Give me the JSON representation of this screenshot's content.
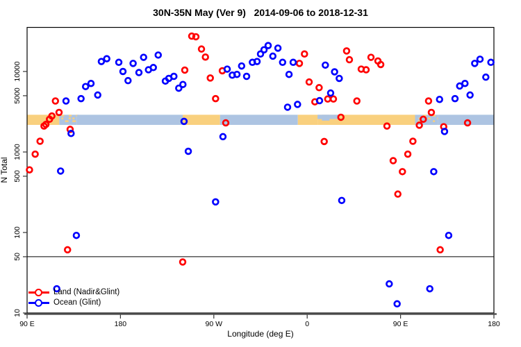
{
  "title": "30N-35N May (Ver 9)   2014-09-06 to 2018-12-31",
  "chart_data": {
    "type": "scatter",
    "title": "30N-35N May (Ver 9)   2014-09-06 to 2018-12-31",
    "xlabel": "Longitude (deg E)",
    "ylabel": "N Total",
    "y_scale": "log",
    "ylim": [
      10,
      40000
    ],
    "x_span_deg": [
      90,
      540
    ],
    "grid": false,
    "legend_position": "bottom-left",
    "reference_line_n": 50,
    "x_ticks": [
      {
        "lon": 90,
        "label": "90 E"
      },
      {
        "lon": 180,
        "label": "180"
      },
      {
        "lon": 270,
        "label": "90 W"
      },
      {
        "lon": 360,
        "label": "0"
      },
      {
        "lon": 450,
        "label": "90 E"
      },
      {
        "lon": 540,
        "label": "180"
      }
    ],
    "y_ticks": [
      {
        "n": 10,
        "label": "10"
      },
      {
        "n": 50,
        "label": "50"
      },
      {
        "n": 100,
        "label": "100"
      },
      {
        "n": 500,
        "label": "500"
      },
      {
        "n": 1000,
        "label": "1000"
      },
      {
        "n": 5000,
        "label": "5000"
      },
      {
        "n": 10000,
        "label": "10000"
      }
    ],
    "map_band": {
      "n_top": 2900,
      "n_bottom": 2170,
      "land_color": "#f9d07e",
      "ocean_color": "#adc4e2",
      "segments": [
        {
          "type": "land",
          "from": 90,
          "to": 121
        },
        {
          "type": "mixed",
          "from": 121,
          "to": 138
        },
        {
          "type": "ocean",
          "from": 138,
          "to": 240
        },
        {
          "type": "land",
          "from": 240,
          "to": 276
        },
        {
          "type": "ocean",
          "from": 276,
          "to": 351
        },
        {
          "type": "land",
          "from": 351,
          "to": 370
        },
        {
          "type": "land-ocean-top",
          "from": 370,
          "to": 391
        },
        {
          "type": "land",
          "from": 391,
          "to": 464
        },
        {
          "type": "mixed",
          "from": 464,
          "to": 486
        },
        {
          "type": "ocean",
          "from": 486,
          "to": 540
        }
      ]
    },
    "series": [
      {
        "name": "Land (Nadir&Glint)",
        "color": "#ff0000",
        "points": [
          [
            117.3,
            4300
          ],
          [
            120.8,
            3100
          ],
          [
            113.9,
            2800
          ],
          [
            111.6,
            2550
          ],
          [
            108.1,
            2200
          ],
          [
            106.3,
            2100
          ],
          [
            102.5,
            1360
          ],
          [
            97.8,
            940
          ],
          [
            92.3,
            600
          ],
          [
            131.5,
            1910
          ],
          [
            242,
            10400
          ],
          [
            248.7,
            27500
          ],
          [
            252.7,
            27000
          ],
          [
            258.1,
            19000
          ],
          [
            261.9,
            15100
          ],
          [
            266.6,
            8300
          ],
          [
            278.2,
            10200
          ],
          [
            271.7,
            4600
          ],
          [
            281.5,
            2300
          ],
          [
            357.4,
            16500
          ],
          [
            352.5,
            12600
          ],
          [
            361.9,
            7400
          ],
          [
            371.5,
            6300
          ],
          [
            367.4,
            4200
          ],
          [
            379.8,
            4550
          ],
          [
            385.3,
            4550
          ],
          [
            376.4,
            1350
          ],
          [
            392.5,
            2700
          ],
          [
            398,
            18000
          ],
          [
            400.7,
            14000
          ],
          [
            412.1,
            10700
          ],
          [
            416.8,
            10500
          ],
          [
            421.5,
            15000
          ],
          [
            428.2,
            13500
          ],
          [
            430.9,
            12200
          ],
          [
            407.9,
            4300
          ],
          [
            436.9,
            2100
          ],
          [
            442.9,
            780
          ],
          [
            447.4,
            300
          ],
          [
            451.8,
            570
          ],
          [
            457,
            940
          ],
          [
            461.9,
            1360
          ],
          [
            468.1,
            2150
          ],
          [
            471.9,
            2550
          ],
          [
            477,
            4300
          ],
          [
            479.7,
            3100
          ],
          [
            488.2,
            61
          ],
          [
            129,
            61
          ],
          [
            240,
            43
          ],
          [
            491.6,
            2060
          ],
          [
            514.6,
            2300
          ]
        ]
      },
      {
        "name": "Ocean (Glint)",
        "color": "#0000ff",
        "points": [
          [
            161.6,
            13300
          ],
          [
            166.8,
            14400
          ],
          [
            178.4,
            13000
          ],
          [
            182.4,
            10000
          ],
          [
            192.2,
            12600
          ],
          [
            187.3,
            7700
          ],
          [
            197.8,
            9700
          ],
          [
            202.3,
            15000
          ],
          [
            207,
            10500
          ],
          [
            211.7,
            11200
          ],
          [
            216.4,
            16000
          ],
          [
            223.3,
            7600
          ],
          [
            226.6,
            8200
          ],
          [
            231.5,
            8700
          ],
          [
            236.2,
            6200
          ],
          [
            240.2,
            6900
          ],
          [
            146.4,
            6500
          ],
          [
            151.6,
            7100
          ],
          [
            158.1,
            5100
          ],
          [
            142,
            4600
          ],
          [
            127.5,
            4300
          ],
          [
            132.4,
            1700
          ],
          [
            241.3,
            2400
          ],
          [
            282.9,
            10700
          ],
          [
            287.8,
            9000
          ],
          [
            292.3,
            9200
          ],
          [
            296.8,
            11700
          ],
          [
            301.6,
            8700
          ],
          [
            307.2,
            13000
          ],
          [
            311.7,
            13300
          ],
          [
            315,
            16500
          ],
          [
            318.4,
            18600
          ],
          [
            322.4,
            21000
          ],
          [
            326.9,
            15500
          ],
          [
            331.8,
            19500
          ],
          [
            336.3,
            13000
          ],
          [
            342.5,
            9200
          ],
          [
            346.5,
            13000
          ],
          [
            341.1,
            3600
          ],
          [
            350.7,
            3900
          ],
          [
            371.9,
            4340
          ],
          [
            382.6,
            5400
          ],
          [
            386.4,
            9900
          ],
          [
            390.9,
            8200
          ],
          [
            377.5,
            12000
          ],
          [
            278.8,
            1550
          ],
          [
            245.4,
            1020
          ],
          [
            271.7,
            240
          ],
          [
            393.3,
            250
          ],
          [
            496.4,
            92
          ],
          [
            137.5,
            92
          ],
          [
            122.3,
            580
          ],
          [
            482,
            570
          ],
          [
            439.1,
            23
          ],
          [
            478.2,
            20
          ],
          [
            118.6,
            20
          ],
          [
            446.7,
            13
          ],
          [
            492.4,
            1800
          ],
          [
            487.6,
            4500
          ],
          [
            502.5,
            4600
          ],
          [
            507,
            6600
          ],
          [
            512.1,
            7100
          ],
          [
            517,
            5100
          ],
          [
            521.5,
            12600
          ],
          [
            526.6,
            14200
          ],
          [
            532.2,
            8500
          ],
          [
            537.1,
            13000
          ]
        ]
      }
    ]
  }
}
